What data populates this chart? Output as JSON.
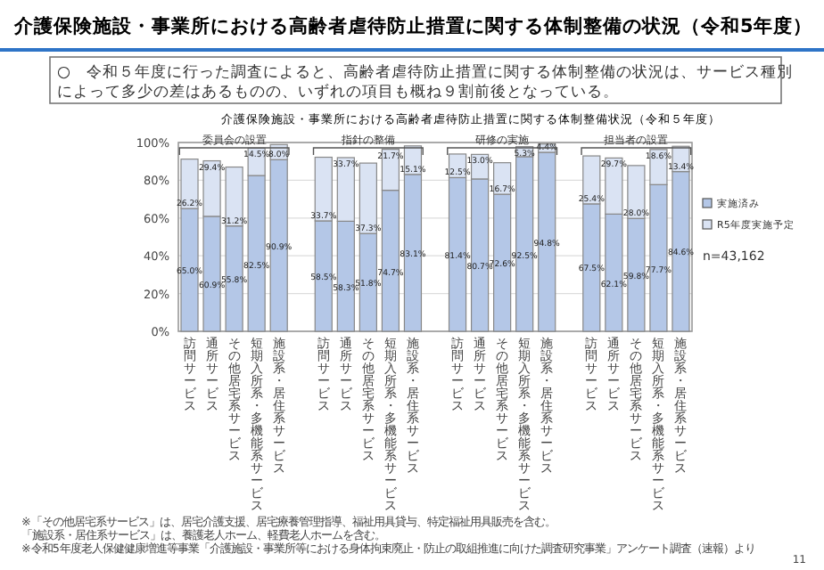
{
  "chart_data": {
    "type": "bar",
    "stacked": true,
    "title": "介護保険施設・事業所における高齢者虐待防止措置に関する体制整備の状況（令和5年度）",
    "subtitle": "○　令和５年度に行った調査によると、高齢者虐待防止措置に関する体制整備の状況は、サービス種別によって多少の差はあるものの、いずれの項目も概ね９割前後となっている。",
    "categories": [
      "訪問サービス",
      "通所サービス",
      "その他居宅系サービス",
      "短期入所系・多機能系サービス",
      "施設系・居住系サービス",
      null,
      "訪問サービス",
      "通所サービス",
      "その他居宅系サービス",
      "短期入所系・多機能系サービス",
      "施設系・居住系サービス",
      null,
      "訪問サービス",
      "通所サービス",
      "その他居宅系サービス",
      "短期入所系・多機能系サービス",
      "施設系・居住系サービス",
      null,
      "訪問サービス",
      "通所サービス",
      "その他居宅系サービス",
      "短期入所系・多機能系サービス",
      "施設系・居住系サービス"
    ],
    "series": [
      {
        "name": "実施済み",
        "color": "#b4c7e7",
        "values": [
          65.0,
          60.9,
          55.8,
          82.5,
          90.9,
          null,
          58.5,
          58.3,
          51.8,
          74.7,
          83.1,
          null,
          81.4,
          80.7,
          72.6,
          92.5,
          94.8,
          null,
          67.5,
          62.1,
          59.8,
          77.7,
          84.6
        ],
        "value_labels": [
          "65.0%",
          "60.9%",
          "55.8%",
          "82.5%",
          "90.9%",
          null,
          "58.5%",
          "58.3%",
          "51.8%",
          "74.7%",
          "83.1%",
          null,
          "81.4%",
          "80.7%",
          "72.6%",
          "92.5%",
          "94.8%",
          null,
          "67.5%",
          "62.1%",
          "59.8%",
          "77.7%",
          "84.6%"
        ]
      },
      {
        "name": "R5年度実施予定",
        "color": "#dae3f3",
        "values": [
          26.2,
          29.4,
          31.2,
          14.5,
          8.0,
          null,
          33.7,
          33.7,
          37.3,
          21.7,
          15.1,
          null,
          12.5,
          13.0,
          16.7,
          5.3,
          4.4,
          null,
          25.4,
          29.7,
          28.0,
          18.6,
          13.4
        ],
        "value_labels": [
          "26.2%",
          "29.4%",
          "31.2%",
          "14.5%",
          "8.0%",
          null,
          "33.7%",
          "33.7%",
          "37.3%",
          "21.7%",
          "15.1%",
          null,
          "12.5%",
          "13.0%",
          "16.7%",
          "5.3%",
          "4.4%",
          null,
          "25.4%",
          "29.7%",
          "28.0%",
          "18.6%",
          "13.4%"
        ]
      }
    ],
    "ylim": [
      0,
      100
    ],
    "yticks": [
      {
        "value": 0,
        "label": "0%"
      },
      {
        "value": 20,
        "label": "20%"
      },
      {
        "value": 40,
        "label": "40%"
      },
      {
        "value": 60,
        "label": "60%"
      },
      {
        "value": 80,
        "label": "80%"
      },
      {
        "value": 100,
        "label": "100%"
      }
    ],
    "grid": "y",
    "legend": "right",
    "annotations": [
      "介護保険施設・事業所における高齢者虐待防止措置に関する体制整備状況（令和５年度）",
      "委員会の設置",
      "指針の整備",
      "研修の実施",
      "担当者の設置",
      "n=43,162",
      "※「その他居宅系サービス」は、居宅介護支援、居宅療養管理指導、福祉用具貸与、特定福祉用具販売を含む。",
      "「施設系・居住系サービス」は、養護老人ホーム、軽費老人ホームを含む。",
      "※令和5年度老人保健健康増進等事業「介護施設・事業所等における身体拘束廃止・防止の取組推進に向けた調査研究事業」アンケート調査（速報）より",
      "11"
    ]
  }
}
